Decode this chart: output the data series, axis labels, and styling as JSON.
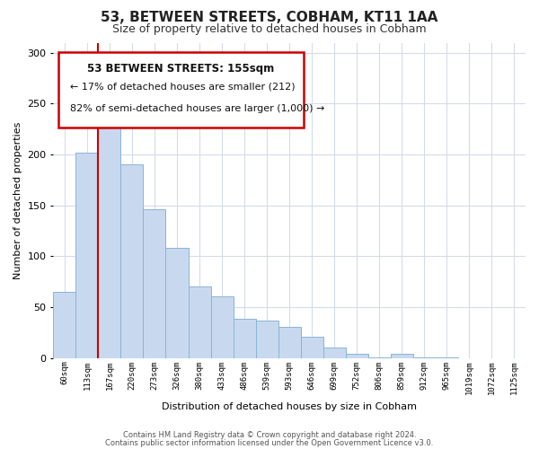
{
  "title": "53, BETWEEN STREETS, COBHAM, KT11 1AA",
  "subtitle": "Size of property relative to detached houses in Cobham",
  "xlabel": "Distribution of detached houses by size in Cobham",
  "ylabel": "Number of detached properties",
  "categories": [
    "60sqm",
    "113sqm",
    "167sqm",
    "220sqm",
    "273sqm",
    "326sqm",
    "380sqm",
    "433sqm",
    "486sqm",
    "539sqm",
    "593sqm",
    "646sqm",
    "699sqm",
    "752sqm",
    "806sqm",
    "859sqm",
    "912sqm",
    "965sqm",
    "1019sqm",
    "1072sqm",
    "1125sqm"
  ],
  "values": [
    65,
    202,
    234,
    190,
    146,
    108,
    70,
    61,
    39,
    37,
    31,
    21,
    10,
    4,
    1,
    4,
    1,
    1,
    0,
    0,
    0
  ],
  "bar_color": "#c8d9ef",
  "bar_edge_color": "#8ab4d4",
  "marker_line_index": 1.5,
  "marker_line_color": "#cc0000",
  "ylim": [
    0,
    310
  ],
  "yticks": [
    0,
    50,
    100,
    150,
    200,
    250,
    300
  ],
  "annotation_title": "53 BETWEEN STREETS: 155sqm",
  "annotation_line1": "← 17% of detached houses are smaller (212)",
  "annotation_line2": "82% of semi-detached houses are larger (1,000) →",
  "footer1": "Contains HM Land Registry data © Crown copyright and database right 2024.",
  "footer2": "Contains public sector information licensed under the Open Government Licence v3.0.",
  "background_color": "#ffffff",
  "grid_color": "#d4dcea"
}
